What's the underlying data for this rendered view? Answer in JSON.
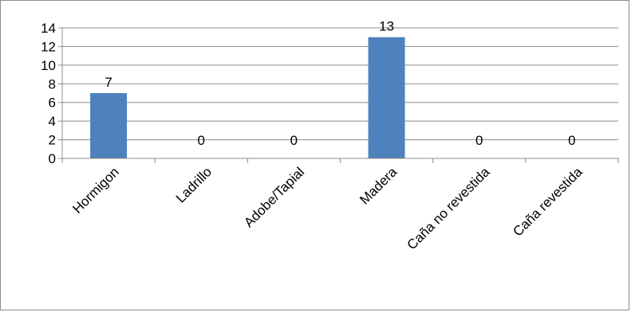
{
  "chart_data": {
    "type": "bar",
    "categories": [
      "Hormigon",
      "Ladrillo",
      "Adobe/Tapial",
      "Madera",
      "Caña no revestida",
      "Caña revestida"
    ],
    "values": [
      7,
      0,
      0,
      13,
      0,
      0
    ],
    "data_labels": [
      "7",
      "0",
      "0",
      "13",
      "0",
      "0"
    ],
    "y_ticks": [
      0,
      2,
      4,
      6,
      8,
      10,
      12,
      14
    ],
    "ylim": [
      0,
      14
    ],
    "grid": true,
    "legend": "none",
    "bar_color": "#4f81bd"
  }
}
